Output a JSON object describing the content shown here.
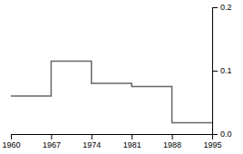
{
  "chart_data": {
    "type": "line",
    "x": [
      1960,
      1967,
      1967,
      1974,
      1974,
      1981,
      1981,
      1988,
      1988,
      1995
    ],
    "values": [
      0.06,
      0.06,
      0.115,
      0.115,
      0.08,
      0.08,
      0.075,
      0.075,
      0.018,
      0.018
    ],
    "color": "#666666",
    "xlim": [
      1960,
      1995
    ],
    "ylim": [
      0.0,
      0.2
    ],
    "xticks": [
      1960,
      1967,
      1974,
      1981,
      1988,
      1995
    ],
    "yticks": [
      {
        "value": 0.0,
        "label": "0.0"
      },
      0.1,
      0.2
    ],
    "grid": false
  }
}
